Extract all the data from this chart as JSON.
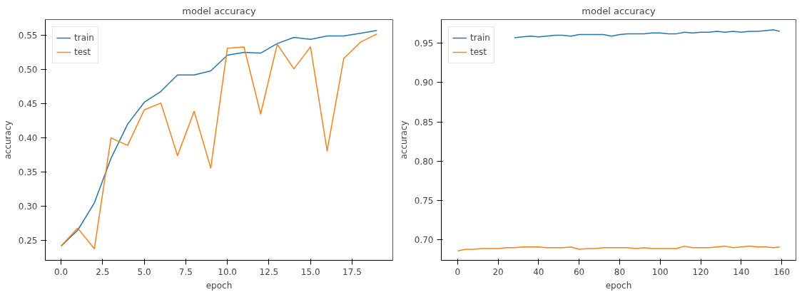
{
  "chart_data": [
    {
      "type": "line",
      "title": "model accuracy",
      "xlabel": "epoch",
      "ylabel": "accuracy",
      "legend": "top left",
      "grid": false,
      "x": [
        0,
        1,
        2,
        3,
        4,
        5,
        6,
        7,
        8,
        9,
        10,
        11,
        12,
        13,
        14,
        15,
        16,
        17,
        18,
        19
      ],
      "xlim": [
        -0.95,
        19.95
      ],
      "ylim": [
        0.221,
        0.573
      ],
      "xticks": [
        {
          "value": 0,
          "label": "0.0"
        },
        2.5,
        {
          "value": 5,
          "label": "5.0"
        },
        7.5,
        {
          "value": 10,
          "label": "10.0"
        },
        12.5,
        {
          "value": 15,
          "label": "15.0"
        },
        17.5
      ],
      "yticks": [
        0.25,
        {
          "value": 0.3,
          "label": "0.30"
        },
        0.35,
        {
          "value": 0.4,
          "label": "0.40"
        },
        0.45,
        {
          "value": 0.5,
          "label": "0.50"
        },
        0.55
      ],
      "series": [
        {
          "name": "train",
          "color": "#1f77b4",
          "values": [
            0.242,
            0.265,
            0.305,
            0.37,
            0.42,
            0.452,
            0.468,
            0.492,
            0.492,
            0.498,
            0.521,
            0.525,
            0.524,
            0.538,
            0.547,
            0.544,
            0.549,
            0.549,
            0.553,
            0.557
          ]
        },
        {
          "name": "test",
          "color": "#ff7f0e",
          "values": [
            0.242,
            0.268,
            0.238,
            0.4,
            0.389,
            0.441,
            0.451,
            0.374,
            0.439,
            0.356,
            0.531,
            0.533,
            0.435,
            0.537,
            0.501,
            0.533,
            0.381,
            0.516,
            0.54,
            0.552
          ]
        }
      ]
    },
    {
      "type": "line",
      "title": "model accuracy",
      "xlabel": "epoch",
      "ylabel": "accuracy",
      "legend": "top left",
      "grid": false,
      "xlim": [
        -8,
        167
      ],
      "ylim": [
        0.674,
        0.98
      ],
      "xticks": [
        0,
        20,
        40,
        60,
        80,
        100,
        120,
        140,
        160
      ],
      "yticks": [
        {
          "value": 0.7,
          "label": "0.70"
        },
        0.75,
        {
          "value": 0.8,
          "label": "0.80"
        },
        0.85,
        {
          "value": 0.9,
          "label": "0.90"
        },
        0.95
      ],
      "series": [
        {
          "name": "train",
          "color": "#1f77b4",
          "x": [
            28,
            32,
            36,
            40,
            44,
            48,
            52,
            56,
            60,
            64,
            68,
            72,
            76,
            80,
            84,
            88,
            92,
            96,
            100,
            104,
            108,
            112,
            116,
            120,
            124,
            128,
            132,
            136,
            140,
            144,
            148,
            152,
            156,
            159
          ],
          "values": [
            0.957,
            0.958,
            0.959,
            0.958,
            0.959,
            0.96,
            0.96,
            0.959,
            0.961,
            0.961,
            0.961,
            0.961,
            0.959,
            0.961,
            0.962,
            0.962,
            0.962,
            0.963,
            0.963,
            0.962,
            0.962,
            0.964,
            0.963,
            0.964,
            0.964,
            0.965,
            0.964,
            0.965,
            0.964,
            0.965,
            0.965,
            0.966,
            0.967,
            0.965
          ]
        },
        {
          "name": "test",
          "color": "#ff7f0e",
          "x": [
            0,
            4,
            8,
            12,
            16,
            20,
            24,
            28,
            32,
            36,
            40,
            44,
            48,
            52,
            56,
            60,
            64,
            68,
            72,
            76,
            80,
            84,
            88,
            92,
            96,
            100,
            104,
            108,
            112,
            116,
            120,
            124,
            128,
            132,
            136,
            140,
            144,
            148,
            152,
            156,
            159
          ],
          "values": [
            0.686,
            0.688,
            0.688,
            0.689,
            0.689,
            0.689,
            0.69,
            0.69,
            0.691,
            0.691,
            0.691,
            0.69,
            0.69,
            0.69,
            0.691,
            0.688,
            0.689,
            0.689,
            0.69,
            0.69,
            0.69,
            0.69,
            0.689,
            0.69,
            0.689,
            0.689,
            0.689,
            0.689,
            0.692,
            0.69,
            0.69,
            0.69,
            0.691,
            0.692,
            0.69,
            0.691,
            0.692,
            0.691,
            0.691,
            0.69,
            0.691
          ]
        }
      ]
    }
  ]
}
